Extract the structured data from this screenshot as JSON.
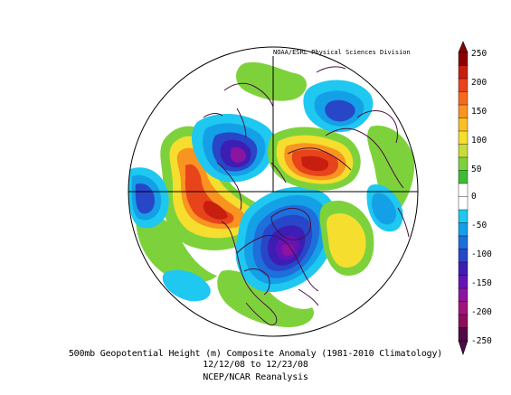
{
  "map": {
    "credit": "NOAA/ESRL Physical Sciences Division",
    "caption": {
      "line1": "500mb Geopotential Height (m) Composite Anomaly (1981-2010 Climatology)",
      "line2": "12/12/08  to 12/23/08",
      "line3": "NCEP/NCAR Reanalysis"
    }
  },
  "colorbar": {
    "labels": [
      "250",
      "200",
      "150",
      "100",
      "50",
      "0",
      "-50",
      "-100",
      "-150",
      "-200",
      "-250"
    ],
    "colors": [
      "#8b0000",
      "#c81e0f",
      "#e8441c",
      "#f76a1c",
      "#f99420",
      "#fbbf25",
      "#f5de2e",
      "#c8dc3a",
      "#7dd23c",
      "#3cbe32",
      "#ffffff",
      "#ffffff",
      "#1ec8f0",
      "#14a0e6",
      "#1e6edc",
      "#2846c8",
      "#3c1eb4",
      "#6414b4",
      "#8c14a0",
      "#a0147d",
      "#8c0f5a",
      "#500a46"
    ]
  }
}
